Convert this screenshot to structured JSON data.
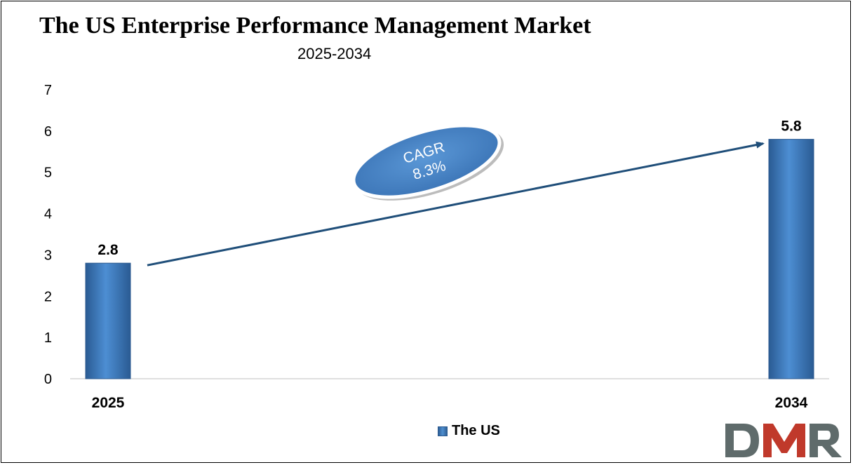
{
  "chart_data": {
    "type": "bar",
    "title": "The US Enterprise Performance Management Market",
    "subtitle": "2025-2034",
    "categories": [
      "2025",
      "2034"
    ],
    "series": [
      {
        "name": "The US",
        "values": [
          2.8,
          5.8
        ]
      }
    ],
    "data_labels": [
      "2.8",
      "5.8"
    ],
    "ylim": [
      0,
      7
    ],
    "yticks": [
      0,
      1,
      2,
      3,
      4,
      5,
      6,
      7
    ],
    "grid": false,
    "legend_position": "bottom",
    "bar_color": "#3a78c2",
    "annotation": {
      "line1": "CAGR",
      "line2": "8.3%",
      "color": "#4a86c8"
    }
  },
  "logo": {
    "text": "DMR",
    "colors": [
      "#5f6b6b",
      "#c0392b"
    ]
  }
}
